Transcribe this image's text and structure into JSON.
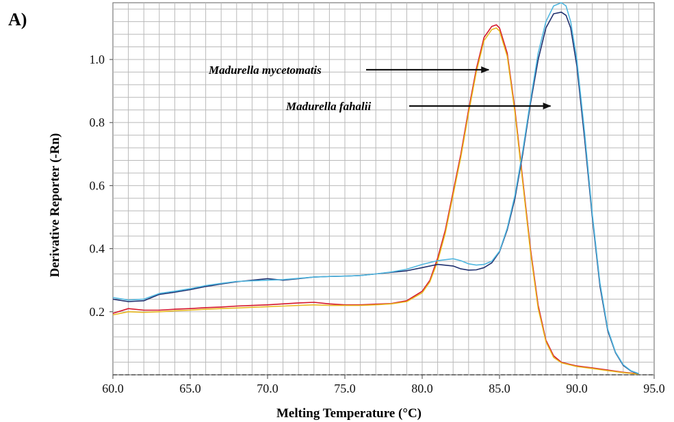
{
  "panel_label": "A)",
  "chart_data": {
    "type": "line",
    "xlabel": "Melting Temperature (°C)",
    "ylabel": "Derivative Reporter (-Rn)",
    "xlim": [
      60,
      95
    ],
    "ylim": [
      0,
      1.18
    ],
    "xticks": [
      "60.0",
      "65.0",
      "70.0",
      "75.0",
      "80.0",
      "85.0",
      "90.0",
      "95.0"
    ],
    "yticks": [
      "0.2",
      "0.4",
      "0.6",
      "0.8",
      "1.0"
    ],
    "grid": true,
    "annotations": [
      {
        "text": "Madurella mycetomatis",
        "arrow_to": [
          84.3,
          1.0
        ]
      },
      {
        "text": "Madurella fahalii",
        "arrow_to": [
          88.3,
          0.86
        ]
      }
    ],
    "series": [
      {
        "color": "#d4142a",
        "x": [
          60,
          61,
          62,
          63,
          64,
          65,
          66,
          67,
          68,
          69,
          70,
          71,
          72,
          73,
          74,
          75,
          76,
          77,
          78,
          79,
          80,
          80.5,
          81,
          81.5,
          82,
          82.5,
          83,
          83.5,
          84,
          84.5,
          84.8,
          85,
          85.5,
          86,
          86.5,
          87,
          87.5,
          88,
          88.5,
          89,
          90,
          91,
          92,
          93,
          94
        ],
        "y": [
          0.195,
          0.21,
          0.205,
          0.205,
          0.208,
          0.21,
          0.213,
          0.215,
          0.218,
          0.22,
          0.222,
          0.225,
          0.228,
          0.23,
          0.225,
          0.222,
          0.222,
          0.224,
          0.226,
          0.235,
          0.265,
          0.3,
          0.37,
          0.46,
          0.58,
          0.7,
          0.84,
          0.97,
          1.07,
          1.105,
          1.11,
          1.1,
          1.02,
          0.84,
          0.62,
          0.4,
          0.22,
          0.11,
          0.06,
          0.04,
          0.028,
          0.022,
          0.015,
          0.008,
          0.003
        ]
      },
      {
        "color": "#e8b820",
        "x": [
          60,
          61,
          62,
          63,
          64,
          65,
          66,
          67,
          68,
          69,
          70,
          71,
          72,
          73,
          74,
          75,
          76,
          77,
          78,
          79,
          80,
          80.5,
          81,
          81.5,
          82,
          82.5,
          83,
          83.5,
          84,
          84.5,
          84.8,
          85,
          85.5,
          86,
          86.5,
          87,
          87.5,
          88,
          88.5,
          89,
          90,
          91,
          92,
          93,
          94
        ],
        "y": [
          0.19,
          0.2,
          0.198,
          0.2,
          0.203,
          0.205,
          0.208,
          0.21,
          0.212,
          0.214,
          0.216,
          0.218,
          0.22,
          0.222,
          0.22,
          0.22,
          0.22,
          0.222,
          0.225,
          0.232,
          0.26,
          0.295,
          0.36,
          0.45,
          0.57,
          0.69,
          0.83,
          0.96,
          1.06,
          1.095,
          1.1,
          1.09,
          1.01,
          0.83,
          0.61,
          0.39,
          0.21,
          0.105,
          0.055,
          0.038,
          0.026,
          0.02,
          0.013,
          0.007,
          0.002
        ]
      },
      {
        "color": "#1e2f6e",
        "x": [
          60,
          61,
          62,
          63,
          64,
          65,
          66,
          67,
          68,
          69,
          70,
          71,
          72,
          73,
          74,
          75,
          76,
          77,
          78,
          79,
          80,
          81,
          82,
          82.5,
          83,
          83.5,
          84,
          84.5,
          85,
          85.5,
          86,
          86.5,
          87,
          87.5,
          88,
          88.5,
          89,
          89.3,
          89.6,
          90,
          90.5,
          91,
          91.5,
          92,
          92.5,
          93,
          93.5,
          94
        ],
        "y": [
          0.24,
          0.232,
          0.235,
          0.255,
          0.262,
          0.27,
          0.28,
          0.288,
          0.295,
          0.3,
          0.305,
          0.3,
          0.305,
          0.31,
          0.312,
          0.313,
          0.315,
          0.32,
          0.325,
          0.33,
          0.34,
          0.35,
          0.345,
          0.336,
          0.332,
          0.333,
          0.34,
          0.355,
          0.39,
          0.46,
          0.56,
          0.7,
          0.86,
          1.0,
          1.1,
          1.145,
          1.15,
          1.14,
          1.1,
          0.98,
          0.75,
          0.5,
          0.28,
          0.14,
          0.07,
          0.03,
          0.012,
          0.003
        ]
      },
      {
        "color": "#4fb6df",
        "x": [
          60,
          61,
          62,
          63,
          64,
          65,
          66,
          67,
          68,
          69,
          70,
          71,
          72,
          73,
          74,
          75,
          76,
          77,
          78,
          79,
          80,
          81,
          82,
          82.5,
          83,
          83.5,
          84,
          84.5,
          85,
          85.5,
          86,
          86.5,
          87,
          87.5,
          88,
          88.5,
          89,
          89.3,
          89.6,
          90,
          90.5,
          91,
          91.5,
          92,
          92.5,
          93,
          93.5,
          94
        ],
        "y": [
          0.245,
          0.237,
          0.24,
          0.258,
          0.265,
          0.273,
          0.283,
          0.29,
          0.296,
          0.298,
          0.3,
          0.302,
          0.306,
          0.31,
          0.312,
          0.313,
          0.315,
          0.32,
          0.326,
          0.335,
          0.35,
          0.362,
          0.368,
          0.362,
          0.352,
          0.348,
          0.35,
          0.36,
          0.392,
          0.465,
          0.57,
          0.71,
          0.87,
          1.02,
          1.12,
          1.17,
          1.18,
          1.17,
          1.12,
          1.0,
          0.77,
          0.51,
          0.29,
          0.145,
          0.072,
          0.032,
          0.013,
          0.004
        ]
      }
    ]
  }
}
